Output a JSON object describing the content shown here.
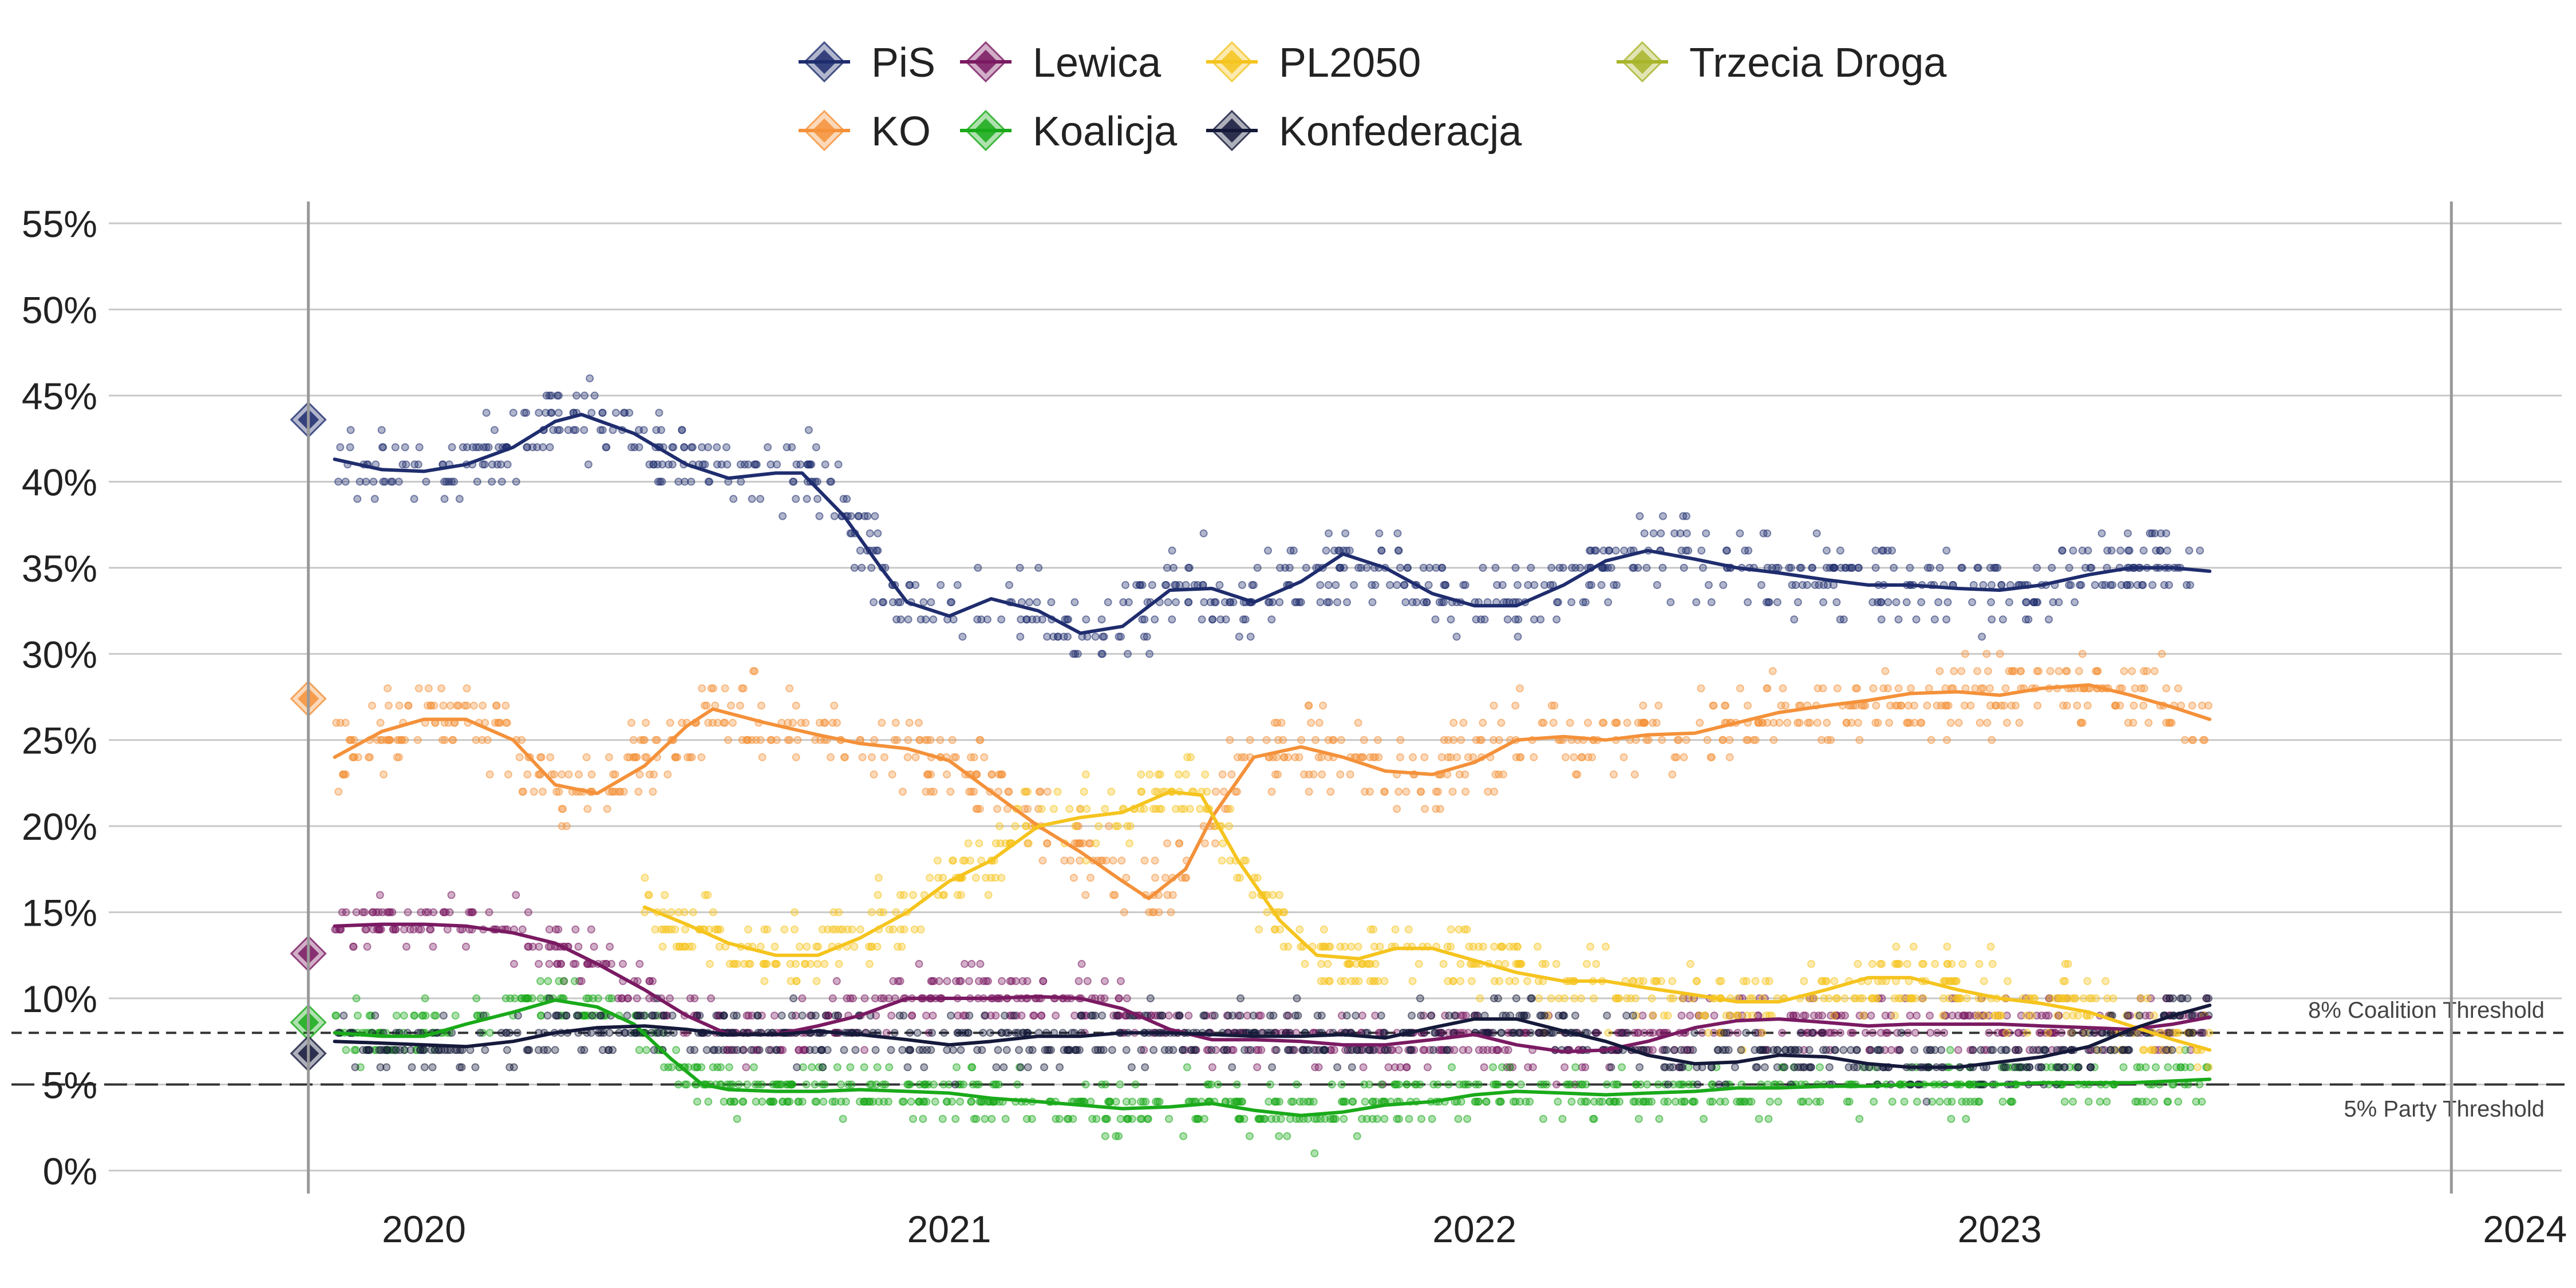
{
  "chart_data": {
    "type": "line",
    "title": "",
    "xlabel": "",
    "ylabel": "",
    "x_ticks": [
      {
        "label": "2020",
        "x": 2020.0
      },
      {
        "label": "2021",
        "x": 2021.0
      },
      {
        "label": "2022",
        "x": 2022.0
      },
      {
        "label": "2023",
        "x": 2023.0
      },
      {
        "label": "2024",
        "x": 2024.0
      }
    ],
    "y_ticks": [
      0,
      5,
      10,
      15,
      20,
      25,
      30,
      35,
      40,
      45,
      50,
      55
    ],
    "y_tick_suffix": "%",
    "xlim": [
      2019.4,
      2024.07
    ],
    "ylim": [
      -1.5,
      57
    ],
    "grid": "horizontal",
    "legend_position": "top-center",
    "election_date": 2019.78,
    "end_marker": 2023.86,
    "thresholds": [
      {
        "name": "8% Coalition Threshold",
        "value": 8,
        "style": "dashed-short"
      },
      {
        "name": "5% Party Threshold",
        "value": 5,
        "style": "dashed-long"
      }
    ],
    "series": [
      {
        "name": "PiS",
        "color": "#1f2d6e",
        "election_result": 43.6,
        "trend": [
          [
            2019.83,
            41.3
          ],
          [
            2019.92,
            40.7
          ],
          [
            2020.0,
            40.6
          ],
          [
            2020.08,
            41.0
          ],
          [
            2020.17,
            42.0
          ],
          [
            2020.25,
            43.5
          ],
          [
            2020.3,
            43.9
          ],
          [
            2020.4,
            42.8
          ],
          [
            2020.5,
            41.0
          ],
          [
            2020.58,
            40.2
          ],
          [
            2020.67,
            40.5
          ],
          [
            2020.72,
            40.5
          ],
          [
            2020.8,
            38.0
          ],
          [
            2020.87,
            35.0
          ],
          [
            2020.92,
            33.0
          ],
          [
            2021.0,
            32.2
          ],
          [
            2021.08,
            33.2
          ],
          [
            2021.17,
            32.5
          ],
          [
            2021.25,
            31.2
          ],
          [
            2021.33,
            31.6
          ],
          [
            2021.42,
            33.7
          ],
          [
            2021.5,
            33.8
          ],
          [
            2021.58,
            33.0
          ],
          [
            2021.67,
            34.2
          ],
          [
            2021.75,
            35.8
          ],
          [
            2021.83,
            35.0
          ],
          [
            2021.92,
            33.5
          ],
          [
            2022.0,
            32.8
          ],
          [
            2022.08,
            32.8
          ],
          [
            2022.17,
            34.0
          ],
          [
            2022.25,
            35.4
          ],
          [
            2022.33,
            36.0
          ],
          [
            2022.42,
            35.5
          ],
          [
            2022.5,
            35.0
          ],
          [
            2022.58,
            34.7
          ],
          [
            2022.67,
            34.3
          ],
          [
            2022.75,
            34.0
          ],
          [
            2022.83,
            34.0
          ],
          [
            2022.92,
            33.8
          ],
          [
            2023.0,
            33.7
          ],
          [
            2023.08,
            34.0
          ],
          [
            2023.17,
            34.6
          ],
          [
            2023.25,
            35.0
          ],
          [
            2023.33,
            35.0
          ],
          [
            2023.4,
            34.8
          ]
        ],
        "spread": 3.2
      },
      {
        "name": "KO",
        "color": "#f4913a",
        "election_result": 27.4,
        "trend": [
          [
            2019.83,
            24.0
          ],
          [
            2019.92,
            25.5
          ],
          [
            2020.0,
            26.2
          ],
          [
            2020.08,
            26.2
          ],
          [
            2020.17,
            25.0
          ],
          [
            2020.25,
            22.4
          ],
          [
            2020.33,
            21.9
          ],
          [
            2020.42,
            23.5
          ],
          [
            2020.5,
            25.8
          ],
          [
            2020.55,
            26.8
          ],
          [
            2020.65,
            26.0
          ],
          [
            2020.75,
            25.3
          ],
          [
            2020.83,
            24.8
          ],
          [
            2020.92,
            24.5
          ],
          [
            2021.0,
            23.8
          ],
          [
            2021.08,
            22.0
          ],
          [
            2021.17,
            20.0
          ],
          [
            2021.25,
            18.5
          ],
          [
            2021.33,
            16.8
          ],
          [
            2021.38,
            15.8
          ],
          [
            2021.45,
            17.5
          ],
          [
            2021.5,
            20.5
          ],
          [
            2021.58,
            24.0
          ],
          [
            2021.67,
            24.6
          ],
          [
            2021.75,
            24.0
          ],
          [
            2021.83,
            23.2
          ],
          [
            2021.92,
            23.0
          ],
          [
            2022.0,
            23.7
          ],
          [
            2022.08,
            25.0
          ],
          [
            2022.17,
            25.2
          ],
          [
            2022.25,
            25.0
          ],
          [
            2022.33,
            25.3
          ],
          [
            2022.42,
            25.4
          ],
          [
            2022.5,
            26.0
          ],
          [
            2022.58,
            26.6
          ],
          [
            2022.67,
            27.0
          ],
          [
            2022.75,
            27.3
          ],
          [
            2022.83,
            27.7
          ],
          [
            2022.92,
            27.8
          ],
          [
            2023.0,
            27.6
          ],
          [
            2023.08,
            28.0
          ],
          [
            2023.17,
            28.2
          ],
          [
            2023.25,
            27.6
          ],
          [
            2023.33,
            26.9
          ],
          [
            2023.4,
            26.2
          ]
        ],
        "spread": 3.5
      },
      {
        "name": "Lewica",
        "color": "#7a1a62",
        "election_result": 12.6,
        "trend": [
          [
            2019.83,
            14.2
          ],
          [
            2019.92,
            14.3
          ],
          [
            2020.0,
            14.3
          ],
          [
            2020.08,
            14.2
          ],
          [
            2020.17,
            13.8
          ],
          [
            2020.25,
            13.2
          ],
          [
            2020.33,
            12.0
          ],
          [
            2020.42,
            10.5
          ],
          [
            2020.5,
            9.0
          ],
          [
            2020.58,
            7.9
          ],
          [
            2020.67,
            7.9
          ],
          [
            2020.75,
            8.4
          ],
          [
            2020.83,
            9.0
          ],
          [
            2020.92,
            10.0
          ],
          [
            2021.0,
            10.0
          ],
          [
            2021.08,
            10.0
          ],
          [
            2021.17,
            10.1
          ],
          [
            2021.25,
            10.0
          ],
          [
            2021.33,
            9.4
          ],
          [
            2021.42,
            8.2
          ],
          [
            2021.5,
            7.6
          ],
          [
            2021.58,
            7.6
          ],
          [
            2021.67,
            7.5
          ],
          [
            2021.75,
            7.3
          ],
          [
            2021.83,
            7.3
          ],
          [
            2021.92,
            7.6
          ],
          [
            2022.0,
            7.9
          ],
          [
            2022.08,
            7.3
          ],
          [
            2022.17,
            6.9
          ],
          [
            2022.25,
            7.0
          ],
          [
            2022.33,
            7.5
          ],
          [
            2022.42,
            8.3
          ],
          [
            2022.5,
            8.7
          ],
          [
            2022.58,
            8.8
          ],
          [
            2022.67,
            8.6
          ],
          [
            2022.75,
            8.4
          ],
          [
            2022.83,
            8.5
          ],
          [
            2022.92,
            8.5
          ],
          [
            2023.0,
            8.5
          ],
          [
            2023.08,
            8.4
          ],
          [
            2023.17,
            8.3
          ],
          [
            2023.25,
            8.2
          ],
          [
            2023.33,
            8.5
          ],
          [
            2023.4,
            8.9
          ]
        ],
        "spread": 2.5
      },
      {
        "name": "KO_Koalicja",
        "label": "Koalicja",
        "color": "#1aaa1a",
        "election_result": 8.6,
        "trend": [
          [
            2019.83,
            8.0
          ],
          [
            2019.92,
            7.8
          ],
          [
            2020.0,
            7.8
          ],
          [
            2020.08,
            8.5
          ],
          [
            2020.17,
            9.2
          ],
          [
            2020.25,
            9.9
          ],
          [
            2020.33,
            9.5
          ],
          [
            2020.4,
            8.5
          ],
          [
            2020.47,
            6.5
          ],
          [
            2020.53,
            5.0
          ],
          [
            2020.58,
            4.7
          ],
          [
            2020.67,
            4.6
          ],
          [
            2020.75,
            4.6
          ],
          [
            2020.83,
            4.7
          ],
          [
            2020.92,
            4.6
          ],
          [
            2021.0,
            4.5
          ],
          [
            2021.08,
            4.2
          ],
          [
            2021.17,
            4.0
          ],
          [
            2021.25,
            3.8
          ],
          [
            2021.33,
            3.6
          ],
          [
            2021.42,
            3.7
          ],
          [
            2021.5,
            3.9
          ],
          [
            2021.58,
            3.5
          ],
          [
            2021.67,
            3.2
          ],
          [
            2021.75,
            3.4
          ],
          [
            2021.83,
            3.8
          ],
          [
            2021.92,
            4.0
          ],
          [
            2022.0,
            4.4
          ],
          [
            2022.08,
            4.6
          ],
          [
            2022.17,
            4.5
          ],
          [
            2022.25,
            4.4
          ],
          [
            2022.33,
            4.5
          ],
          [
            2022.42,
            4.6
          ],
          [
            2022.5,
            4.8
          ],
          [
            2022.58,
            4.8
          ],
          [
            2022.67,
            4.9
          ],
          [
            2022.75,
            4.9
          ],
          [
            2022.83,
            5.0
          ],
          [
            2022.92,
            5.0
          ],
          [
            2023.0,
            5.0
          ],
          [
            2023.08,
            5.1
          ],
          [
            2023.17,
            5.1
          ],
          [
            2023.25,
            5.1
          ],
          [
            2023.33,
            5.2
          ],
          [
            2023.4,
            5.3
          ]
        ],
        "spread": 2.2
      },
      {
        "name": "PL2050",
        "color": "#f5c41e",
        "election_result": null,
        "trend": [
          [
            2020.42,
            15.3
          ],
          [
            2020.5,
            14.3
          ],
          [
            2020.58,
            13.2
          ],
          [
            2020.67,
            12.5
          ],
          [
            2020.75,
            12.5
          ],
          [
            2020.83,
            13.5
          ],
          [
            2020.92,
            15.0
          ],
          [
            2021.0,
            16.8
          ],
          [
            2021.08,
            18.0
          ],
          [
            2021.17,
            20.0
          ],
          [
            2021.25,
            20.5
          ],
          [
            2021.33,
            20.8
          ],
          [
            2021.42,
            22.0
          ],
          [
            2021.48,
            21.8
          ],
          [
            2021.55,
            18.0
          ],
          [
            2021.63,
            14.5
          ],
          [
            2021.7,
            12.5
          ],
          [
            2021.78,
            12.3
          ],
          [
            2021.85,
            12.9
          ],
          [
            2021.92,
            12.9
          ],
          [
            2022.0,
            12.2
          ],
          [
            2022.08,
            11.5
          ],
          [
            2022.17,
            11.0
          ],
          [
            2022.25,
            11.0
          ],
          [
            2022.33,
            10.6
          ],
          [
            2022.42,
            10.2
          ],
          [
            2022.5,
            9.8
          ],
          [
            2022.58,
            9.8
          ],
          [
            2022.67,
            10.5
          ],
          [
            2022.75,
            11.2
          ],
          [
            2022.83,
            11.2
          ],
          [
            2022.92,
            10.5
          ],
          [
            2023.0,
            10.0
          ],
          [
            2023.08,
            9.7
          ],
          [
            2023.17,
            9.2
          ],
          [
            2023.25,
            8.4
          ],
          [
            2023.33,
            7.6
          ],
          [
            2023.4,
            7.0
          ]
        ],
        "spread": 3.0
      },
      {
        "name": "Konfederacja",
        "color": "#15193a",
        "election_result": 6.8,
        "trend": [
          [
            2019.83,
            7.5
          ],
          [
            2019.92,
            7.4
          ],
          [
            2020.0,
            7.3
          ],
          [
            2020.08,
            7.2
          ],
          [
            2020.17,
            7.5
          ],
          [
            2020.25,
            8.0
          ],
          [
            2020.33,
            8.3
          ],
          [
            2020.42,
            8.4
          ],
          [
            2020.5,
            8.2
          ],
          [
            2020.58,
            7.9
          ],
          [
            2020.67,
            7.9
          ],
          [
            2020.75,
            8.1
          ],
          [
            2020.83,
            7.9
          ],
          [
            2020.92,
            7.6
          ],
          [
            2021.0,
            7.3
          ],
          [
            2021.08,
            7.5
          ],
          [
            2021.17,
            7.8
          ],
          [
            2021.25,
            7.8
          ],
          [
            2021.33,
            8.0
          ],
          [
            2021.42,
            8.0
          ],
          [
            2021.5,
            7.9
          ],
          [
            2021.58,
            7.8
          ],
          [
            2021.67,
            7.8
          ],
          [
            2021.75,
            7.9
          ],
          [
            2021.83,
            7.7
          ],
          [
            2021.92,
            8.3
          ],
          [
            2022.0,
            8.8
          ],
          [
            2022.08,
            8.8
          ],
          [
            2022.17,
            8.1
          ],
          [
            2022.25,
            7.5
          ],
          [
            2022.33,
            6.7
          ],
          [
            2022.42,
            6.2
          ],
          [
            2022.5,
            6.3
          ],
          [
            2022.58,
            6.7
          ],
          [
            2022.67,
            6.6
          ],
          [
            2022.75,
            6.2
          ],
          [
            2022.83,
            6.0
          ],
          [
            2022.92,
            6.0
          ],
          [
            2023.0,
            6.3
          ],
          [
            2023.08,
            6.6
          ],
          [
            2023.17,
            7.2
          ],
          [
            2023.25,
            8.2
          ],
          [
            2023.33,
            9.0
          ],
          [
            2023.4,
            9.6
          ]
        ],
        "spread": 2.3
      },
      {
        "name": "Trzecia Droga",
        "color": "#a8b42a",
        "election_result": null,
        "trend": [],
        "spread": 0
      }
    ]
  }
}
